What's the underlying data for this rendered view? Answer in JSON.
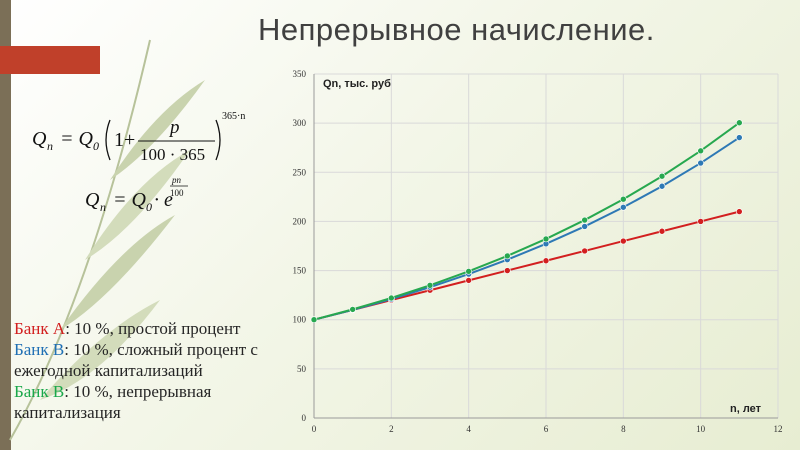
{
  "slide": {
    "title": "Непрерывное начисление."
  },
  "legend_text": {
    "a_name": "Банк А",
    "a_desc": ": 10 %, простой процент",
    "b_name": "Банк В",
    "b_desc": ": 10 %, сложный процент с ежегодной капитализаций",
    "c_name": "Банк В",
    "c_desc": ": 10 %, непрерывная капитализация"
  },
  "formula": {
    "f1_lhs": "Q",
    "f1_lhs_sub": "n",
    "f1_eq": "= Q",
    "f1_q0_sub": "0",
    "f1_one": "1+",
    "f1_num": "p",
    "f1_den": "100 · 365",
    "f1_exp": "365·n",
    "f2_lhs": "Q",
    "f2_lhs_sub": "n",
    "f2_eq": "= Q",
    "f2_q0_sub": "0",
    "f2_e": "· e",
    "f2_exp_num": "pn",
    "f2_exp_den": "100"
  },
  "chart_data": {
    "type": "line",
    "ylabel": "Qn, тыс. руб",
    "xlabel": "n, лет",
    "xlim": [
      0,
      12
    ],
    "ylim": [
      0,
      350
    ],
    "xticks": [
      0,
      2,
      4,
      6,
      8,
      10,
      12
    ],
    "yticks": [
      0,
      50,
      100,
      150,
      200,
      250,
      300,
      350
    ],
    "grid": true,
    "x": [
      0,
      1,
      2,
      3,
      4,
      5,
      6,
      7,
      8,
      9,
      10,
      11
    ],
    "series": [
      {
        "color": "#d21f1f",
        "values": [
          100,
          110,
          120,
          130,
          140,
          150,
          160,
          170,
          180,
          190,
          200,
          210
        ]
      },
      {
        "color": "#2e79b5",
        "values": [
          100,
          110,
          121,
          133.1,
          146.4,
          161.1,
          177.2,
          194.9,
          214.4,
          235.8,
          259.4,
          285.3
        ]
      },
      {
        "color": "#27a84f",
        "values": [
          100,
          110.5,
          122.1,
          135,
          149.2,
          164.9,
          182.2,
          201.4,
          222.6,
          246,
          271.8,
          300.4
        ]
      }
    ]
  }
}
